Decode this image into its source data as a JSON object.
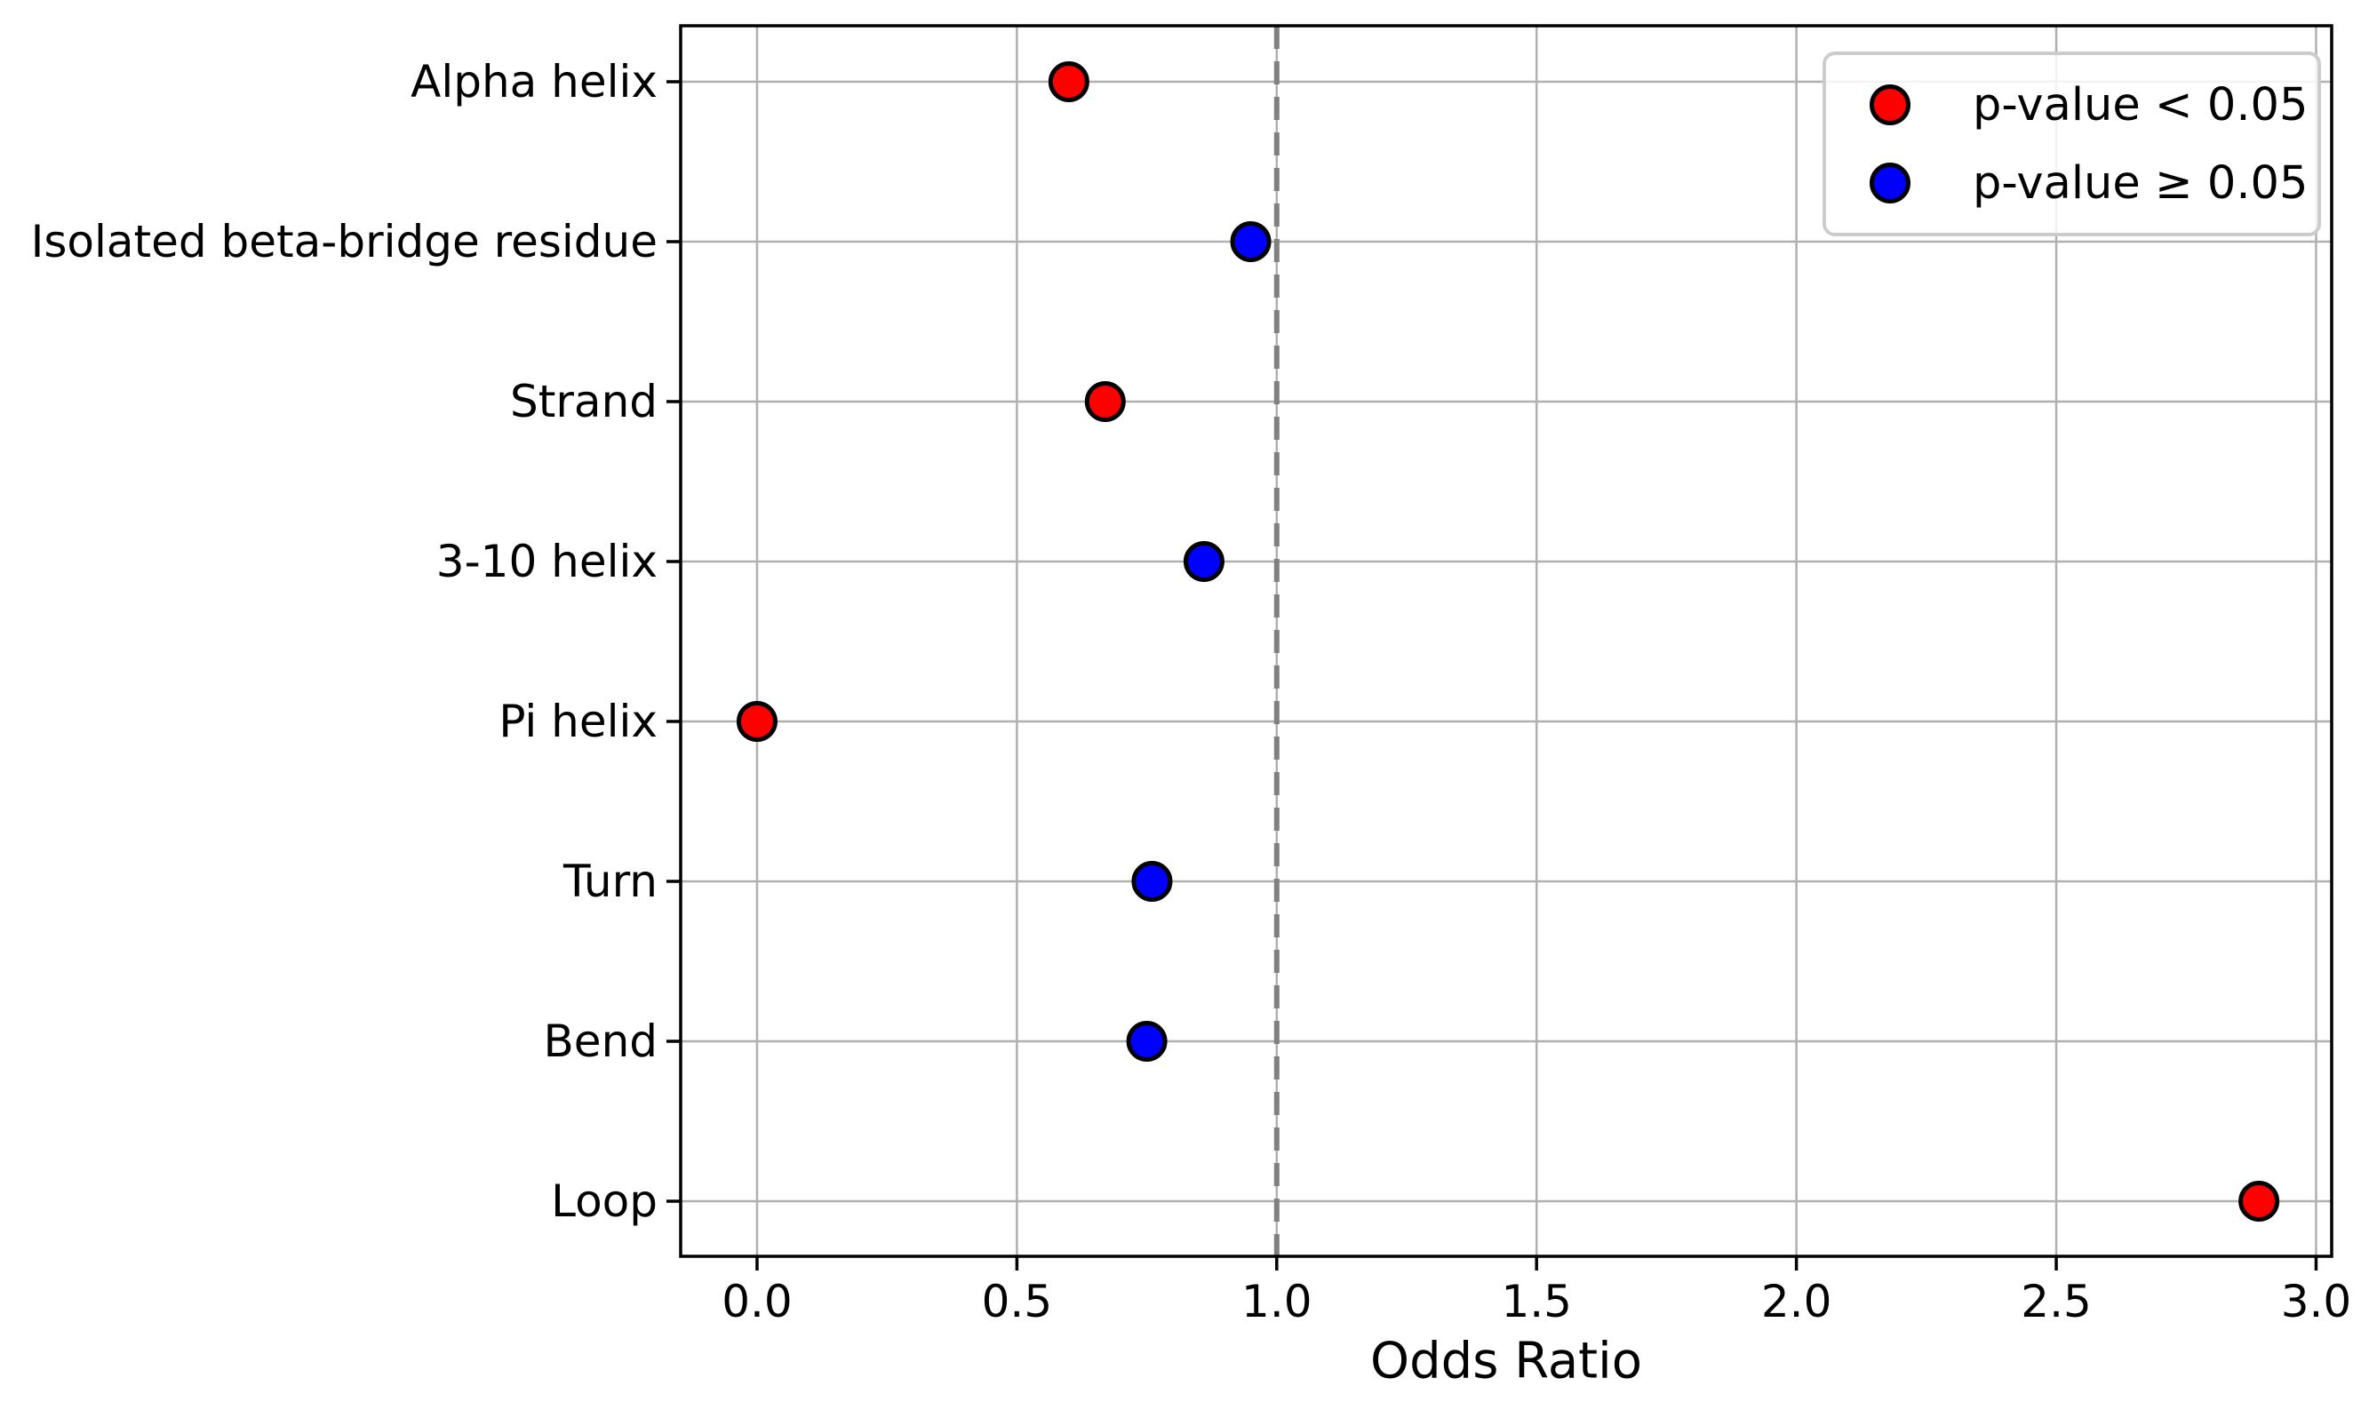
{
  "figure": {
    "background": "#ffffff"
  },
  "chart_data": {
    "type": "scatter",
    "orientation": "horizontal_categorical_dot_plot",
    "title": "",
    "xlabel": "Odds Ratio",
    "ylabel": "",
    "categories": [
      "Alpha helix",
      "Isolated beta-bridge residue",
      "Strand",
      "3-10 helix",
      "Pi helix",
      "Turn",
      "Bend",
      "Loop"
    ],
    "points": [
      {
        "category": "Alpha helix",
        "odds_ratio": 0.6,
        "significant": true
      },
      {
        "category": "Isolated beta-bridge residue",
        "odds_ratio": 0.95,
        "significant": false
      },
      {
        "category": "Strand",
        "odds_ratio": 0.67,
        "significant": true
      },
      {
        "category": "3-10 helix",
        "odds_ratio": 0.86,
        "significant": false
      },
      {
        "category": "Pi helix",
        "odds_ratio": 0.0,
        "significant": true
      },
      {
        "category": "Turn",
        "odds_ratio": 0.76,
        "significant": false
      },
      {
        "category": "Bend",
        "odds_ratio": 0.75,
        "significant": false
      },
      {
        "category": "Loop",
        "odds_ratio": 2.89,
        "significant": true
      }
    ],
    "x_ticks": [
      0.0,
      0.5,
      1.0,
      1.5,
      2.0,
      2.5,
      3.0
    ],
    "x_tick_labels": [
      "0.0",
      "0.5",
      "1.0",
      "1.5",
      "2.0",
      "2.5",
      "3.0"
    ],
    "xlim": [
      -0.147,
      3.03
    ],
    "reference_line_x": 1.0,
    "grid": true,
    "legend": {
      "position": "upper right",
      "items": [
        {
          "label": "p-value < 0.05",
          "color": "#ff0000"
        },
        {
          "label": "p-value ≥ 0.05",
          "color": "#0000ff"
        }
      ]
    },
    "colors": {
      "significant": "#ff0000",
      "not_significant": "#0000ff",
      "marker_edge": "#000000",
      "grid": "#b0b0b0",
      "reference_line": "#808080",
      "spine": "#000000",
      "text": "#000000"
    }
  }
}
